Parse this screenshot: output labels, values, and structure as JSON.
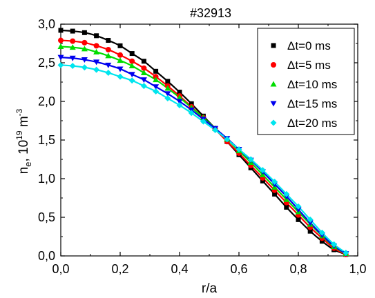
{
  "chart_data": {
    "type": "scatter",
    "title": "#32913",
    "xlabel": "r/a",
    "ylabel": {
      "main": "n",
      "main_sub": "e",
      "sep": ", 10",
      "exp1": "19",
      "unit": " m",
      "exp2": "-3"
    },
    "xlim": [
      0.0,
      1.0
    ],
    "ylim": [
      0.0,
      3.0
    ],
    "xticks": [
      "0,0",
      "0,2",
      "0,4",
      "0,6",
      "0,8",
      "1,0"
    ],
    "yticks": [
      "0,0",
      "0,5",
      "1,0",
      "1,5",
      "2,0",
      "2,5",
      "3,0"
    ],
    "legend_position": "top-right",
    "grid": false,
    "x": [
      0.0,
      0.04,
      0.08,
      0.12,
      0.16,
      0.2,
      0.24,
      0.28,
      0.32,
      0.36,
      0.4,
      0.44,
      0.48,
      0.52,
      0.56,
      0.6,
      0.64,
      0.68,
      0.72,
      0.76,
      0.8,
      0.84,
      0.88,
      0.92,
      0.96
    ],
    "series": [
      {
        "name": "Δt=0 ms",
        "marker": "square",
        "color": "#000000",
        "values": [
          2.92,
          2.91,
          2.89,
          2.85,
          2.79,
          2.72,
          2.62,
          2.52,
          2.39,
          2.26,
          2.12,
          1.97,
          1.81,
          1.65,
          1.48,
          1.31,
          1.14,
          0.97,
          0.8,
          0.63,
          0.47,
          0.32,
          0.19,
          0.08,
          0.02
        ]
      },
      {
        "name": "Δt=5 ms",
        "marker": "circle",
        "color": "#ff0000",
        "values": [
          2.79,
          2.78,
          2.76,
          2.72,
          2.67,
          2.6,
          2.52,
          2.43,
          2.32,
          2.2,
          2.07,
          1.93,
          1.79,
          1.64,
          1.48,
          1.33,
          1.17,
          1.01,
          0.85,
          0.69,
          0.53,
          0.37,
          0.23,
          0.1,
          0.02
        ]
      },
      {
        "name": "Δt=10 ms",
        "marker": "triangle-up",
        "color": "#00dd00",
        "values": [
          2.71,
          2.7,
          2.68,
          2.64,
          2.59,
          2.53,
          2.46,
          2.37,
          2.28,
          2.17,
          2.05,
          1.92,
          1.79,
          1.65,
          1.51,
          1.36,
          1.21,
          1.05,
          0.89,
          0.73,
          0.57,
          0.41,
          0.26,
          0.12,
          0.03
        ]
      },
      {
        "name": "Δt=15 ms",
        "marker": "triangle-down",
        "color": "#0000ee",
        "values": [
          2.57,
          2.56,
          2.54,
          2.51,
          2.47,
          2.42,
          2.35,
          2.28,
          2.19,
          2.1,
          2.0,
          1.89,
          1.77,
          1.65,
          1.52,
          1.38,
          1.24,
          1.09,
          0.93,
          0.77,
          0.6,
          0.43,
          0.27,
          0.13,
          0.03
        ]
      },
      {
        "name": "Δt=20 ms",
        "marker": "diamond",
        "color": "#00e5ee",
        "values": [
          2.47,
          2.46,
          2.44,
          2.41,
          2.37,
          2.32,
          2.27,
          2.2,
          2.13,
          2.04,
          1.95,
          1.85,
          1.74,
          1.63,
          1.51,
          1.38,
          1.25,
          1.11,
          0.96,
          0.8,
          0.64,
          0.47,
          0.3,
          0.15,
          0.04
        ]
      }
    ]
  }
}
